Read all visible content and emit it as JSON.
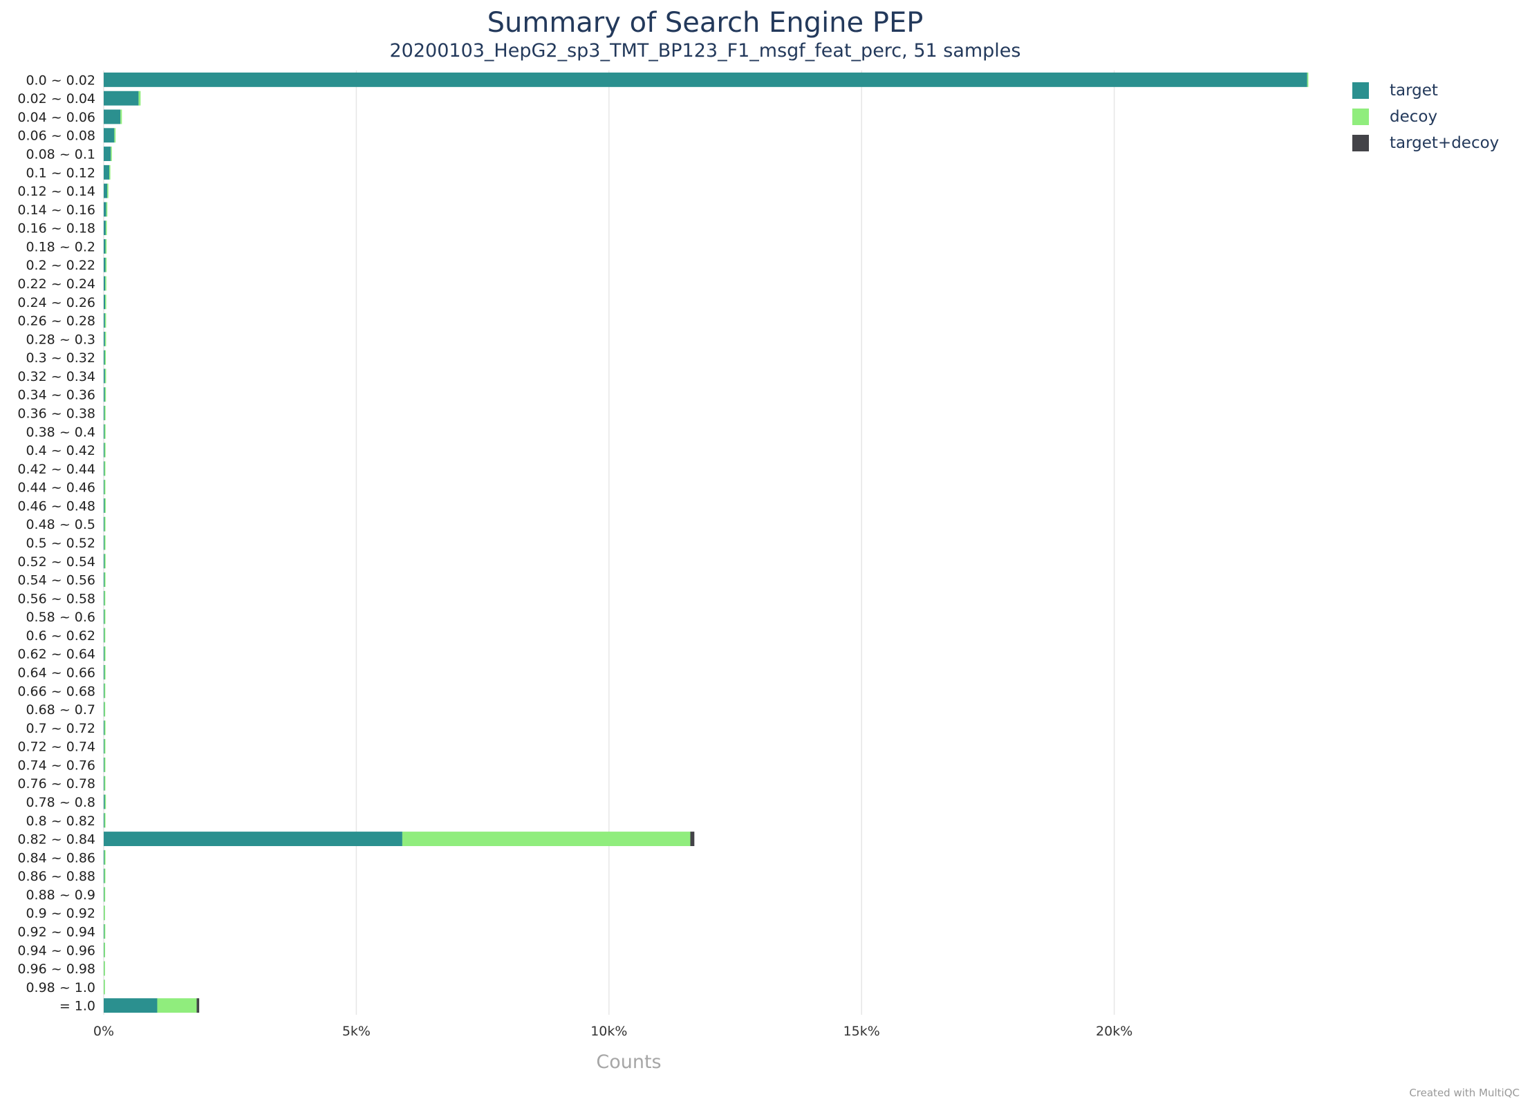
{
  "chart_data": {
    "type": "bar",
    "orientation": "horizontal",
    "stacked": true,
    "title": "Summary of Search Engine PEP",
    "subtitle": "20200103_HepG2_sp3_TMT_BP123_F1_msgf_feat_perc, 51 samples",
    "xlabel": "Counts",
    "ylabel": "",
    "xlim": [
      0,
      23850
    ],
    "xticks": [
      {
        "value": 0,
        "label": "0%"
      },
      {
        "value": 5000,
        "label": "5k%"
      },
      {
        "value": 10000,
        "label": "10k%"
      },
      {
        "value": 15000,
        "label": "15k%"
      },
      {
        "value": 20000,
        "label": "20k%"
      }
    ],
    "grid": "vertical",
    "legend_position": "top-right",
    "categories": [
      "0.0 ~ 0.02",
      "0.02 ~ 0.04",
      "0.04 ~ 0.06",
      "0.06 ~ 0.08",
      "0.08 ~ 0.1",
      "0.1 ~ 0.12",
      "0.12 ~ 0.14",
      "0.14 ~ 0.16",
      "0.16 ~ 0.18",
      "0.18 ~ 0.2",
      "0.2 ~ 0.22",
      "0.22 ~ 0.24",
      "0.24 ~ 0.26",
      "0.26 ~ 0.28",
      "0.28 ~ 0.3",
      "0.3 ~ 0.32",
      "0.32 ~ 0.34",
      "0.34 ~ 0.36",
      "0.36 ~ 0.38",
      "0.38 ~ 0.4",
      "0.4 ~ 0.42",
      "0.42 ~ 0.44",
      "0.44 ~ 0.46",
      "0.46 ~ 0.48",
      "0.48 ~ 0.5",
      "0.5 ~ 0.52",
      "0.52 ~ 0.54",
      "0.54 ~ 0.56",
      "0.56 ~ 0.58",
      "0.58 ~ 0.6",
      "0.6 ~ 0.62",
      "0.62 ~ 0.64",
      "0.64 ~ 0.66",
      "0.66 ~ 0.68",
      "0.68 ~ 0.7",
      "0.7 ~ 0.72",
      "0.72 ~ 0.74",
      "0.74 ~ 0.76",
      "0.76 ~ 0.78",
      "0.78 ~ 0.8",
      "0.8 ~ 0.82",
      "0.82 ~ 0.84",
      "0.84 ~ 0.86",
      "0.86 ~ 0.88",
      "0.88 ~ 0.9",
      "0.9 ~ 0.92",
      "0.92 ~ 0.94",
      "0.94 ~ 0.96",
      "0.96 ~ 0.98",
      "0.98 ~ 1.0",
      "= 1.0"
    ],
    "series": [
      {
        "name": "target",
        "color": "#2b908f",
        "values": [
          23820,
          690,
          330,
          210,
          140,
          110,
          70,
          50,
          40,
          35,
          35,
          30,
          28,
          25,
          25,
          20,
          25,
          22,
          15,
          15,
          15,
          12,
          12,
          18,
          14,
          14,
          16,
          14,
          10,
          12,
          10,
          14,
          14,
          10,
          8,
          14,
          12,
          12,
          12,
          22,
          14,
          5910,
          14,
          12,
          8,
          3,
          10,
          6,
          3,
          2,
          1060
        ]
      },
      {
        "name": "decoy",
        "color": "#90ed7d",
        "values": [
          20,
          40,
          30,
          25,
          20,
          15,
          12,
          10,
          10,
          8,
          10,
          8,
          8,
          8,
          8,
          8,
          8,
          8,
          8,
          8,
          8,
          8,
          8,
          10,
          10,
          10,
          10,
          10,
          8,
          8,
          10,
          8,
          8,
          10,
          8,
          12,
          10,
          10,
          12,
          12,
          12,
          5700,
          10,
          10,
          8,
          4,
          8,
          5,
          4,
          3,
          780
        ]
      },
      {
        "name": "target+decoy",
        "color": "#434348",
        "values": [
          0,
          0,
          0,
          0,
          0,
          0,
          0,
          0,
          0,
          0,
          0,
          0,
          0,
          0,
          0,
          0,
          0,
          0,
          0,
          0,
          0,
          0,
          0,
          0,
          0,
          0,
          0,
          0,
          0,
          0,
          0,
          0,
          0,
          0,
          0,
          0,
          0,
          0,
          0,
          0,
          0,
          80,
          0,
          0,
          0,
          0,
          0,
          0,
          0,
          0,
          50
        ]
      }
    ]
  },
  "watermark": "Created with MultiQC"
}
